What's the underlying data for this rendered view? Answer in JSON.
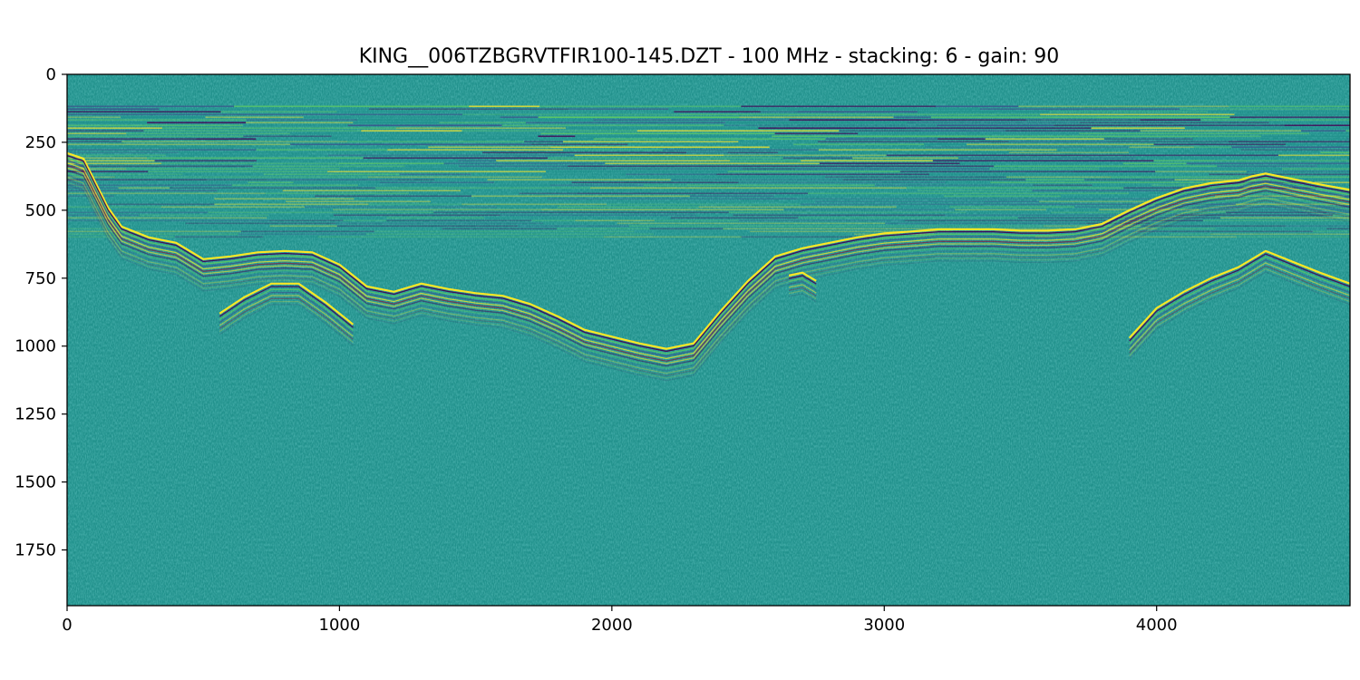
{
  "chart_data": {
    "type": "heatmap",
    "title": "KING__006TZBGRVTFIR100-145.DZT - 100 MHz - stacking: 6 - gain: 90",
    "xlabel": "",
    "ylabel": "",
    "x_range": [
      0,
      4710
    ],
    "y_range": [
      1955,
      0
    ],
    "x_ticks": [
      0,
      1000,
      2000,
      3000,
      4000
    ],
    "y_ticks": [
      0,
      250,
      500,
      750,
      1000,
      1250,
      1500,
      1750
    ],
    "colormap": [
      "#440154",
      "#3b528b",
      "#21918c",
      "#5ec962",
      "#fde725",
      "#8b0a3a"
    ],
    "background_color": "#21918c",
    "grid": false,
    "legend": "none",
    "air_wave_band": {
      "y_top": 115,
      "y_bottom": 600
    },
    "reflectors": [
      {
        "name": "",
        "points": [
          [
            0,
            290
          ],
          [
            60,
            310
          ],
          [
            150,
            490
          ],
          [
            200,
            560
          ],
          [
            300,
            600
          ],
          [
            400,
            620
          ],
          [
            500,
            680
          ],
          [
            600,
            670
          ],
          [
            700,
            655
          ],
          [
            800,
            650
          ],
          [
            900,
            655
          ],
          [
            1000,
            700
          ],
          [
            1100,
            780
          ],
          [
            1200,
            800
          ],
          [
            1300,
            770
          ],
          [
            1400,
            790
          ],
          [
            1500,
            805
          ],
          [
            1600,
            815
          ],
          [
            1700,
            845
          ],
          [
            1800,
            890
          ],
          [
            1900,
            940
          ],
          [
            2000,
            965
          ],
          [
            2100,
            990
          ],
          [
            2200,
            1010
          ],
          [
            2300,
            990
          ],
          [
            2400,
            870
          ],
          [
            2500,
            760
          ],
          [
            2600,
            670
          ],
          [
            2700,
            640
          ],
          [
            2800,
            620
          ],
          [
            2900,
            600
          ],
          [
            3000,
            585
          ],
          [
            3100,
            578
          ],
          [
            3200,
            570
          ],
          [
            3300,
            570
          ],
          [
            3400,
            570
          ],
          [
            3500,
            575
          ],
          [
            3600,
            575
          ],
          [
            3700,
            570
          ],
          [
            3800,
            550
          ],
          [
            3900,
            500
          ],
          [
            4000,
            455
          ],
          [
            4100,
            420
          ],
          [
            4200,
            400
          ],
          [
            4300,
            390
          ],
          [
            4350,
            375
          ],
          [
            4400,
            365
          ],
          [
            4500,
            385
          ],
          [
            4600,
            405
          ],
          [
            4710,
            425
          ]
        ]
      },
      {
        "name": "",
        "points": [
          [
            560,
            880
          ],
          [
            650,
            820
          ],
          [
            750,
            770
          ],
          [
            850,
            770
          ],
          [
            950,
            840
          ],
          [
            1050,
            920
          ]
        ]
      },
      {
        "name": "",
        "points": [
          [
            2650,
            740
          ],
          [
            2700,
            730
          ],
          [
            2750,
            760
          ]
        ]
      },
      {
        "name": "",
        "points": [
          [
            3900,
            970
          ],
          [
            4000,
            860
          ],
          [
            4100,
            800
          ],
          [
            4200,
            750
          ],
          [
            4300,
            710
          ],
          [
            4400,
            650
          ],
          [
            4500,
            690
          ],
          [
            4600,
            730
          ],
          [
            4710,
            770
          ]
        ]
      }
    ]
  }
}
